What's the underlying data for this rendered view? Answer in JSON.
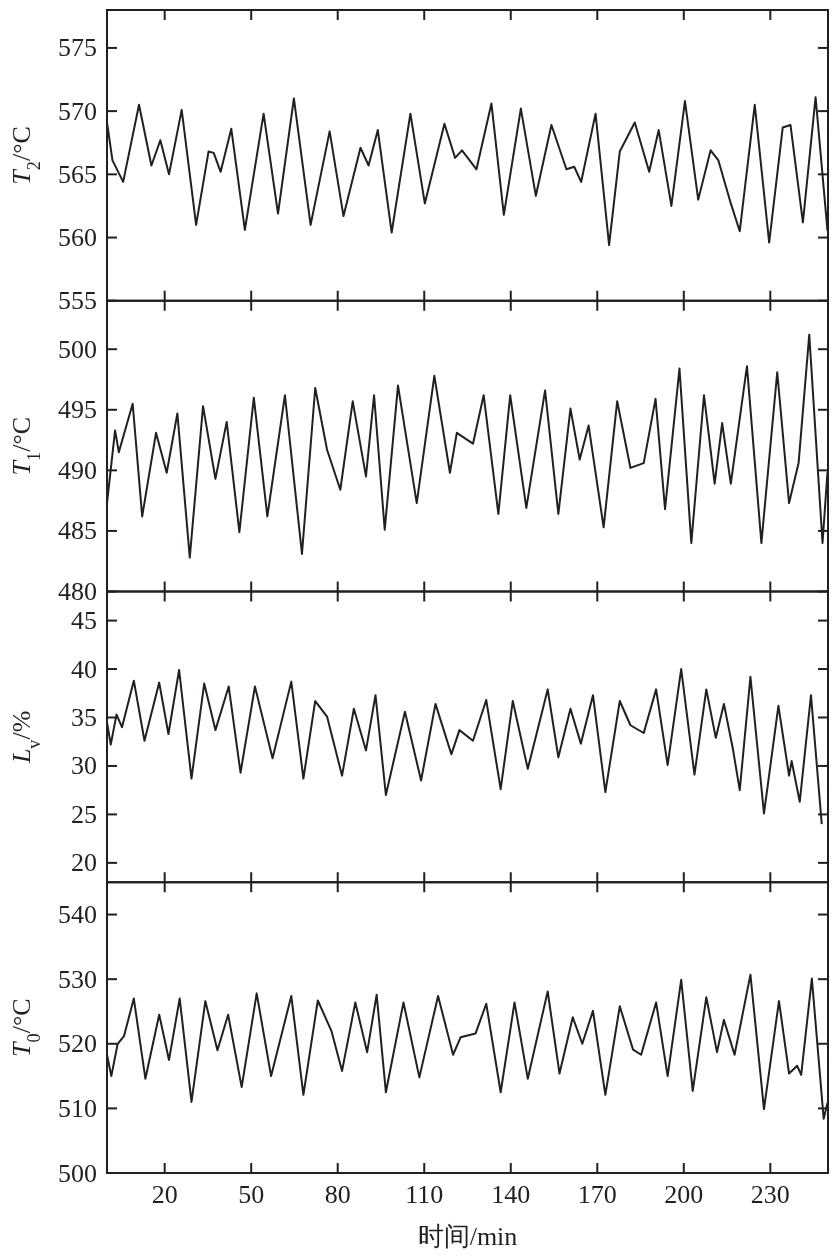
{
  "chart_data": [
    {
      "type": "line",
      "ylabel": "*T*$_{2}$/°C",
      "xlim": [
        0,
        250
      ],
      "xticks": [
        20,
        50,
        80,
        110,
        140,
        170,
        200,
        230
      ],
      "ylim": [
        555,
        578
      ],
      "yticks": [
        555,
        560,
        565,
        570,
        575
      ],
      "tick_labels": "y",
      "x": [
        0,
        1.9,
        5.6,
        11.1,
        15.4,
        18.5,
        21.5,
        25.9,
        30.9,
        35.2,
        37,
        39.4,
        43.1,
        47.8,
        54.3,
        59.3,
        64.8,
        70.6,
        77.2,
        82,
        87.9,
        90.7,
        93.9,
        98.7,
        105.2,
        110.2,
        117,
        120.7,
        123.1,
        128.1,
        133.3,
        137.6,
        143.5,
        148.7,
        154.1,
        159.3,
        162,
        164.4,
        169.4,
        174.1,
        177.8,
        183,
        188,
        191.3,
        195.7,
        200.4,
        205,
        209.3,
        212,
        216.3,
        219.4,
        224.6,
        229.6,
        234.3,
        237,
        241.3,
        245.7,
        249.8
      ],
      "series": [
        {
          "color": "#231f20",
          "values": [
            569.1,
            566.1,
            564.4,
            570.5,
            565.7,
            567.7,
            565,
            570.1,
            561,
            566.8,
            566.7,
            565.2,
            568.6,
            560.6,
            569.8,
            561.9,
            571,
            561,
            568.4,
            561.7,
            567.1,
            565.7,
            568.5,
            560.4,
            569.8,
            562.7,
            569,
            566.3,
            566.9,
            565.4,
            570.6,
            561.8,
            570.2,
            563.3,
            568.9,
            565.4,
            565.6,
            564.4,
            569.8,
            559.4,
            566.8,
            569.1,
            565.2,
            568.5,
            562.5,
            570.8,
            563,
            566.9,
            566.1,
            562.7,
            560.5,
            570.5,
            559.6,
            568.7,
            568.9,
            561.2,
            571.1,
            560.6
          ]
        }
      ]
    },
    {
      "type": "line",
      "ylabel": "*T*$_{1}$/°C",
      "xlim": [
        0,
        250
      ],
      "xticks": [
        20,
        50,
        80,
        110,
        140,
        170,
        200,
        230
      ],
      "ylim": [
        480,
        504
      ],
      "yticks": [
        480,
        485,
        490,
        495,
        500
      ],
      "tick_labels": "y",
      "x": [
        0,
        2.8,
        4.1,
        8.9,
        12.2,
        17,
        20.7,
        24.4,
        28.7,
        33.3,
        37.6,
        41.5,
        45.9,
        50.9,
        55.6,
        61.7,
        67.6,
        72.2,
        76.3,
        80.9,
        85.2,
        89.8,
        92.6,
        96.3,
        100.9,
        107.4,
        113.5,
        118.9,
        121.3,
        126.9,
        130.6,
        135.7,
        139.8,
        145.4,
        151.9,
        156.5,
        160.7,
        163.9,
        167,
        172.2,
        176.9,
        181.5,
        186.1,
        190.2,
        193.5,
        198.5,
        202.6,
        207,
        210.7,
        213.3,
        216.3,
        221.9,
        226.9,
        232.4,
        236.5,
        239.8,
        243.5,
        248.1,
        249.8
      ],
      "series": [
        {
          "color": "#231f20",
          "values": [
            487.3,
            493.3,
            491.5,
            495.5,
            486.2,
            493.1,
            489.8,
            494.7,
            482.8,
            495.3,
            489.3,
            494,
            484.9,
            496,
            486.2,
            496.2,
            483.1,
            496.8,
            491.7,
            488.4,
            495.7,
            489.5,
            496.2,
            485.1,
            497,
            487.3,
            497.8,
            489.8,
            493.1,
            492.2,
            496.2,
            486.4,
            496.2,
            486.9,
            496.6,
            486.4,
            495.1,
            490.9,
            493.7,
            485.3,
            495.7,
            490.2,
            490.6,
            495.9,
            486.8,
            498.4,
            484,
            496.2,
            488.9,
            493.9,
            488.9,
            498.6,
            484,
            498.1,
            487.3,
            490.6,
            501.2,
            484,
            489.8
          ]
        }
      ]
    },
    {
      "type": "line",
      "ylabel": "*L*$_{v}$/%",
      "xlim": [
        0,
        250
      ],
      "xticks": [
        20,
        50,
        80,
        110,
        140,
        170,
        200,
        230
      ],
      "ylim": [
        18,
        48
      ],
      "yticks": [
        20,
        25,
        30,
        35,
        40,
        45
      ],
      "tick_labels": "y",
      "x": [
        0,
        1.3,
        3.3,
        5.2,
        9.3,
        13,
        18.1,
        21.3,
        25,
        29.3,
        33.7,
        37.6,
        42.2,
        46.3,
        51.3,
        57.4,
        63.9,
        68.1,
        72.2,
        76.3,
        81.5,
        85.6,
        89.8,
        93.1,
        96.7,
        103.3,
        108.9,
        113.9,
        119.4,
        122.2,
        126.9,
        131.5,
        136.5,
        140.7,
        145.9,
        152.8,
        156.5,
        160.7,
        164.3,
        168.5,
        172.8,
        177.8,
        181.5,
        186.1,
        190.4,
        194.4,
        199.1,
        203.7,
        207.8,
        211.1,
        213.9,
        217,
        219.4,
        223.1,
        227.8,
        232.8,
        236.5,
        237.4,
        240.2,
        244.1,
        247.8
      ],
      "series": [
        {
          "color": "#231f20",
          "values": [
            34.5,
            32.2,
            35.3,
            34,
            38.8,
            32.6,
            38.6,
            33.3,
            39.9,
            28.7,
            38.5,
            33.7,
            38.2,
            29.3,
            38.2,
            30.8,
            38.7,
            28.7,
            36.7,
            35.1,
            29,
            35.9,
            31.6,
            37.3,
            27,
            35.6,
            28.5,
            36.4,
            31.2,
            33.7,
            32.6,
            36.8,
            27.6,
            36.7,
            29.7,
            37.9,
            30.9,
            35.9,
            32.3,
            37.3,
            27.3,
            36.7,
            34.2,
            33.4,
            37.9,
            30.1,
            40,
            29.1,
            37.9,
            32.9,
            36.4,
            31.8,
            27.5,
            39.2,
            25.1,
            36.2,
            29,
            30.5,
            26.3,
            37.3,
            24.1
          ]
        }
      ]
    },
    {
      "type": "line",
      "ylabel": "*T*$_{0}$/°C",
      "xlabel": "时间/min",
      "xlim": [
        0,
        250
      ],
      "xticks": [
        20,
        50,
        80,
        110,
        140,
        170,
        200,
        230
      ],
      "ylim": [
        500,
        545
      ],
      "yticks": [
        500,
        510,
        520,
        530,
        540
      ],
      "x": [
        0,
        1.5,
        3.7,
        5.9,
        9.3,
        13.3,
        18.1,
        21.5,
        25.2,
        29.3,
        34.1,
        38.3,
        42,
        46.7,
        51.9,
        56.9,
        63.9,
        68.1,
        73.1,
        77.8,
        81.5,
        86.1,
        90.2,
        93.5,
        96.7,
        102.8,
        108.3,
        114.8,
        120,
        122.6,
        127.8,
        131.5,
        136.5,
        141.3,
        145.9,
        152.8,
        156.9,
        161.5,
        164.8,
        168.5,
        172.8,
        177.8,
        182.4,
        185.2,
        190.4,
        194.4,
        199.1,
        203.1,
        207.8,
        211.5,
        213.9,
        217.6,
        223.1,
        227.8,
        233,
        236.5,
        239.3,
        240.7,
        244.4,
        248.5,
        249.8
      ],
      "series": [
        {
          "color": "#231f20",
          "values": [
            518.3,
            515,
            520,
            521.2,
            527,
            514.6,
            524.5,
            517.5,
            527,
            511,
            526.6,
            519,
            524.5,
            513.3,
            527.8,
            515,
            527.4,
            512.1,
            526.7,
            522,
            515.8,
            526.4,
            518.7,
            527.6,
            512.5,
            526.4,
            514.8,
            527.4,
            518.3,
            521,
            521.6,
            526.2,
            512.5,
            526.4,
            514.6,
            528.1,
            515.4,
            524.1,
            520,
            525.1,
            512.1,
            525.8,
            519.1,
            518.3,
            526.4,
            515,
            529.9,
            512.7,
            527.2,
            518.7,
            523.7,
            518.3,
            530.7,
            509.9,
            526.6,
            515.4,
            516.6,
            515.2,
            530.1,
            508.4,
            510.8
          ]
        }
      ]
    }
  ]
}
